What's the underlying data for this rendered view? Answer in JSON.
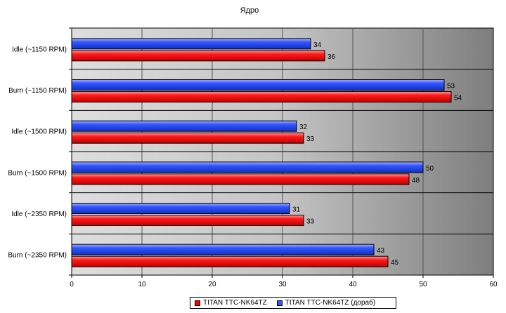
{
  "chart_data": {
    "type": "bar",
    "orientation": "horizontal",
    "title": "Ядро",
    "categories": [
      "Idle (~1150 RPM)",
      "Burn (~1150 RPM)",
      "Idle (~1500 RPM)",
      "Burn (~1500 RPM)",
      "Idle (~2350 RPM)",
      "Burn (~2350 RPM)"
    ],
    "series": [
      {
        "name": "TITAN TTC-NK64TZ",
        "color": "#ff0000",
        "values": [
          36,
          54,
          33,
          48,
          33,
          45
        ]
      },
      {
        "name": "TITAN TTC-NK64TZ (дораб)",
        "color": "#3355ff",
        "values": [
          34,
          53,
          32,
          50,
          31,
          43
        ]
      }
    ],
    "xlim": [
      0,
      60
    ],
    "xticks": [
      "0",
      "10",
      "20",
      "30",
      "40",
      "50",
      "60"
    ],
    "grid": true,
    "legend_position": "bottom",
    "data_labels": true
  }
}
